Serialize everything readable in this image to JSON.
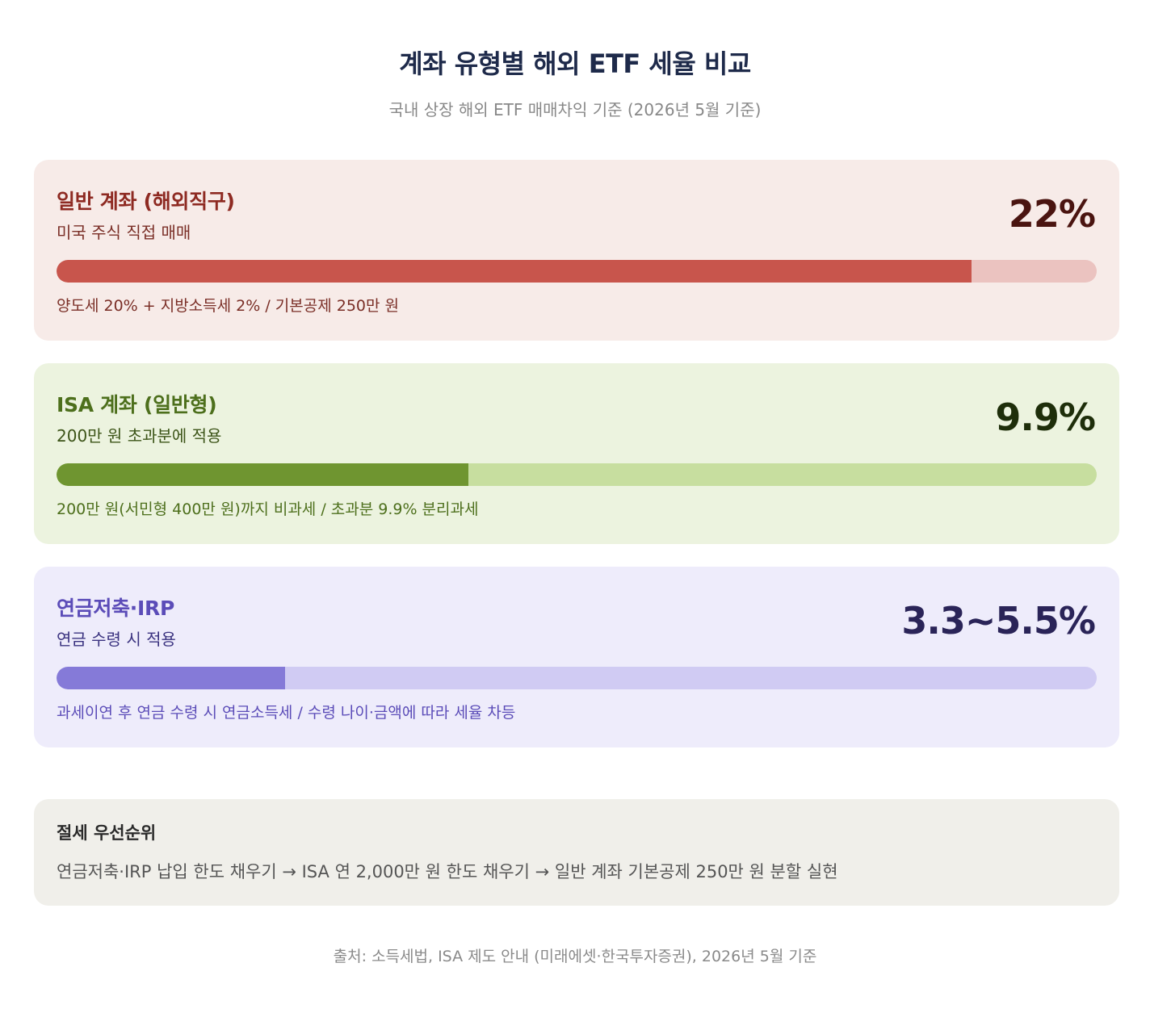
{
  "header": {
    "title": "계좌 유형별 해외 ETF 세율 비교",
    "subtitle": "국내 상장 해외 ETF 매매차익 기준 (2026년 5월 기준)"
  },
  "chart_data": {
    "type": "bar",
    "orientation": "horizontal",
    "title": "계좌 유형별 해외 ETF 세율 비교",
    "subtitle": "국내 상장 해외 ETF 매매차익 기준 (2026년 5월 기준)",
    "categories": [
      "일반 계좌 (해외직구)",
      "ISA 계좌 (일반형)",
      "연금저축·IRP"
    ],
    "values": [
      22,
      9.9,
      5.5
    ],
    "value_labels": [
      "22%",
      "9.9%",
      "3.3~5.5%"
    ],
    "xlim": [
      0,
      25
    ],
    "unit": "%",
    "grid": false,
    "legend": "none",
    "cards": [
      {
        "name": "일반 계좌 (해외직구)",
        "sub": "미국 주식 직접 매매",
        "rate_label": "22%",
        "value": 22,
        "note": "양도세 20% + 지방소득세 2% / 기본공제 250만 원",
        "colors": {
          "bg": "#f7ebe8",
          "title": "#8e2a22",
          "sub": "#7a2e26",
          "rate": "#4a1410",
          "fill": "#c8554c",
          "track": "#ebc3c0",
          "note": "#7a2e26"
        }
      },
      {
        "name": "ISA 계좌 (일반형)",
        "sub": "200만 원 초과분에 적용",
        "rate_label": "9.9%",
        "value": 9.9,
        "note": "200만 원(서민형 400만 원)까지 비과세 / 초과분 9.9% 분리과세",
        "colors": {
          "bg": "#ecf3df",
          "title": "#4d6f1c",
          "sub": "#3c5418",
          "rate": "#1e2e0a",
          "fill": "#6f9530",
          "track": "#c7de9f",
          "note": "#4d6f1c"
        }
      },
      {
        "name": "연금저축·IRP",
        "sub": "연금 수령 시 적용",
        "rate_label": "3.3~5.5%",
        "value": 5.5,
        "note": "과세이연 후 연금 수령 시 연금소득세 / 수령 나이·금액에 따라 세율 차등",
        "colors": {
          "bg": "#eeecfb",
          "title": "#5b4cb8",
          "sub": "#3b3380",
          "rate": "#2a2458",
          "fill": "#857ad8",
          "track": "#d0cbf3",
          "note": "#5b4cb8"
        }
      }
    ]
  },
  "tip": {
    "title": "절세 우선순위",
    "body": "연금저축·IRP 납입 한도 채우기 → ISA 연 2,000만 원 한도 채우기 → 일반 계좌 기본공제 250만 원 분할 실현"
  },
  "footer": {
    "source": "출처: 소득세법, ISA 제도 안내 (미래에셋·한국투자증권), 2026년 5월 기준"
  }
}
